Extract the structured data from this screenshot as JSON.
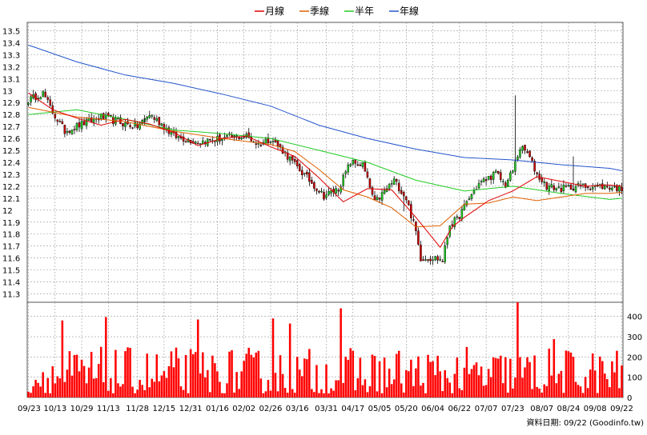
{
  "colors": {
    "up_candle": "#22cc22",
    "down_candle": "#cc0000",
    "wick": "#000000",
    "ma_month": "#e00000",
    "ma_quarter": "#e06000",
    "ma_half": "#22cc22",
    "ma_year": "#2255cc",
    "volume": "#ff0000",
    "grid": "#999999"
  },
  "chart_data": [
    {
      "type": "candlestick",
      "title": "",
      "legend": {
        "placement": "top-center",
        "items": [
          {
            "name": "月線",
            "color_key": "ma_month"
          },
          {
            "name": "季線",
            "color_key": "ma_quarter"
          },
          {
            "name": "半年",
            "color_key": "ma_half"
          },
          {
            "name": "年線",
            "color_key": "ma_year"
          }
        ]
      },
      "y_axis": {
        "side": "left",
        "ticks": [
          11.3,
          11.4,
          11.5,
          11.6,
          11.7,
          11.8,
          11.9,
          12,
          12.1,
          12.2,
          12.3,
          12.4,
          12.5,
          12.6,
          12.7,
          12.8,
          12.9,
          13,
          13.1,
          13.2,
          13.3,
          13.4,
          13.5
        ],
        "ylim": [
          11.23,
          13.57
        ]
      },
      "grid": true,
      "series": [
        {
          "name": "年線",
          "color_key": "ma_year",
          "x": [
            0,
            20,
            40,
            60,
            80,
            100,
            120,
            140,
            160,
            180,
            200,
            220,
            240,
            245
          ],
          "values": [
            13.38,
            13.24,
            13.13,
            13.06,
            12.97,
            12.87,
            12.71,
            12.6,
            12.51,
            12.44,
            12.42,
            12.38,
            12.35,
            12.33
          ]
        },
        {
          "name": "半年",
          "color_key": "ma_half",
          "x": [
            0,
            20,
            40,
            60,
            80,
            100,
            120,
            140,
            160,
            180,
            200,
            220,
            240,
            245
          ],
          "values": [
            12.8,
            12.84,
            12.76,
            12.67,
            12.64,
            12.6,
            12.5,
            12.4,
            12.25,
            12.16,
            12.2,
            12.14,
            12.09,
            12.1
          ]
        },
        {
          "name": "季線",
          "color_key": "ma_quarter",
          "x": [
            0,
            20,
            40,
            60,
            80,
            100,
            110,
            120,
            130,
            140,
            150,
            160,
            170,
            180,
            190,
            200,
            210,
            220,
            230,
            240,
            245
          ],
          "values": [
            12.86,
            12.78,
            12.74,
            12.66,
            12.6,
            12.55,
            12.49,
            12.34,
            12.17,
            12.11,
            12.02,
            11.86,
            11.87,
            12.05,
            12.06,
            12.11,
            12.08,
            12.11,
            12.14,
            12.14,
            12.15
          ]
        },
        {
          "name": "月線",
          "color_key": "ma_month",
          "x": [
            0,
            10,
            20,
            30,
            40,
            50,
            60,
            70,
            80,
            90,
            100,
            110,
            120,
            130,
            140,
            150,
            160,
            170,
            175,
            180,
            190,
            200,
            210,
            220,
            230,
            240,
            245
          ],
          "values": [
            12.98,
            12.84,
            12.77,
            12.71,
            12.76,
            12.72,
            12.65,
            12.54,
            12.6,
            12.62,
            12.53,
            12.45,
            12.27,
            12.07,
            12.18,
            12.17,
            11.94,
            11.69,
            11.86,
            11.94,
            12.08,
            12.16,
            12.28,
            12.24,
            12.2,
            12.21,
            12.2
          ]
        },
        {
          "name": "candles",
          "candle_count": 246,
          "key_points": [
            [
              0,
              12.92
            ],
            [
              6,
              12.98
            ],
            [
              10,
              12.82
            ],
            [
              15,
              12.66
            ],
            [
              22,
              12.72
            ],
            [
              30,
              12.78
            ],
            [
              40,
              12.72
            ],
            [
              45,
              12.7
            ],
            [
              50,
              12.8
            ],
            [
              55,
              12.72
            ],
            [
              60,
              12.62
            ],
            [
              70,
              12.57
            ],
            [
              80,
              12.6
            ],
            [
              90,
              12.62
            ],
            [
              95,
              12.55
            ],
            [
              100,
              12.6
            ],
            [
              105,
              12.5
            ],
            [
              110,
              12.38
            ],
            [
              116,
              12.25
            ],
            [
              122,
              12.12
            ],
            [
              128,
              12.18
            ],
            [
              133,
              12.4
            ],
            [
              138,
              12.38
            ],
            [
              143,
              12.06
            ],
            [
              148,
              12.18
            ],
            [
              151,
              12.25
            ],
            [
              156,
              12.1
            ],
            [
              160,
              11.82
            ],
            [
              162,
              11.6
            ],
            [
              168,
              11.6
            ],
            [
              171,
              11.58
            ],
            [
              174,
              11.88
            ],
            [
              177,
              11.92
            ],
            [
              182,
              12.1
            ],
            [
              186,
              12.22
            ],
            [
              190,
              12.27
            ],
            [
              193,
              12.31
            ],
            [
              197,
              12.21
            ],
            [
              200,
              12.33
            ],
            [
              203,
              12.52
            ],
            [
              206,
              12.48
            ],
            [
              210,
              12.3
            ],
            [
              214,
              12.2
            ],
            [
              220,
              12.18
            ],
            [
              226,
              12.2
            ],
            [
              232,
              12.2
            ],
            [
              238,
              12.2
            ],
            [
              245,
              12.18
            ]
          ]
        }
      ]
    },
    {
      "type": "bar",
      "title": "",
      "y_axis": {
        "side": "right",
        "ticks": [
          0,
          100,
          200,
          300,
          400
        ],
        "ylim": [
          0,
          470
        ]
      },
      "x_tick_labels": [
        "09/23",
        "10/13",
        "10/29",
        "11/13",
        "11/28",
        "12/15",
        "12/31",
        "01/16",
        "02/02",
        "02/26",
        "03/16",
        "03/31",
        "04/17",
        "05/05",
        "05/20",
        "06/04",
        "06/22",
        "07/07",
        "07/23",
        "08/07",
        "08/24",
        "09/08",
        "09/22"
      ],
      "footer_label": "資料日期: 09/22 (Goodinfo.tw)",
      "spikes": [
        [
          14,
          380
        ],
        [
          32,
          397
        ],
        [
          70,
          385
        ],
        [
          101,
          390
        ],
        [
          108,
          365
        ],
        [
          129,
          440
        ],
        [
          202,
          470
        ],
        [
          217,
          288
        ]
      ],
      "series": [
        {
          "name": "volume",
          "color_key": "volume",
          "count": 246,
          "typical_range": [
            20,
            250
          ]
        }
      ]
    }
  ]
}
